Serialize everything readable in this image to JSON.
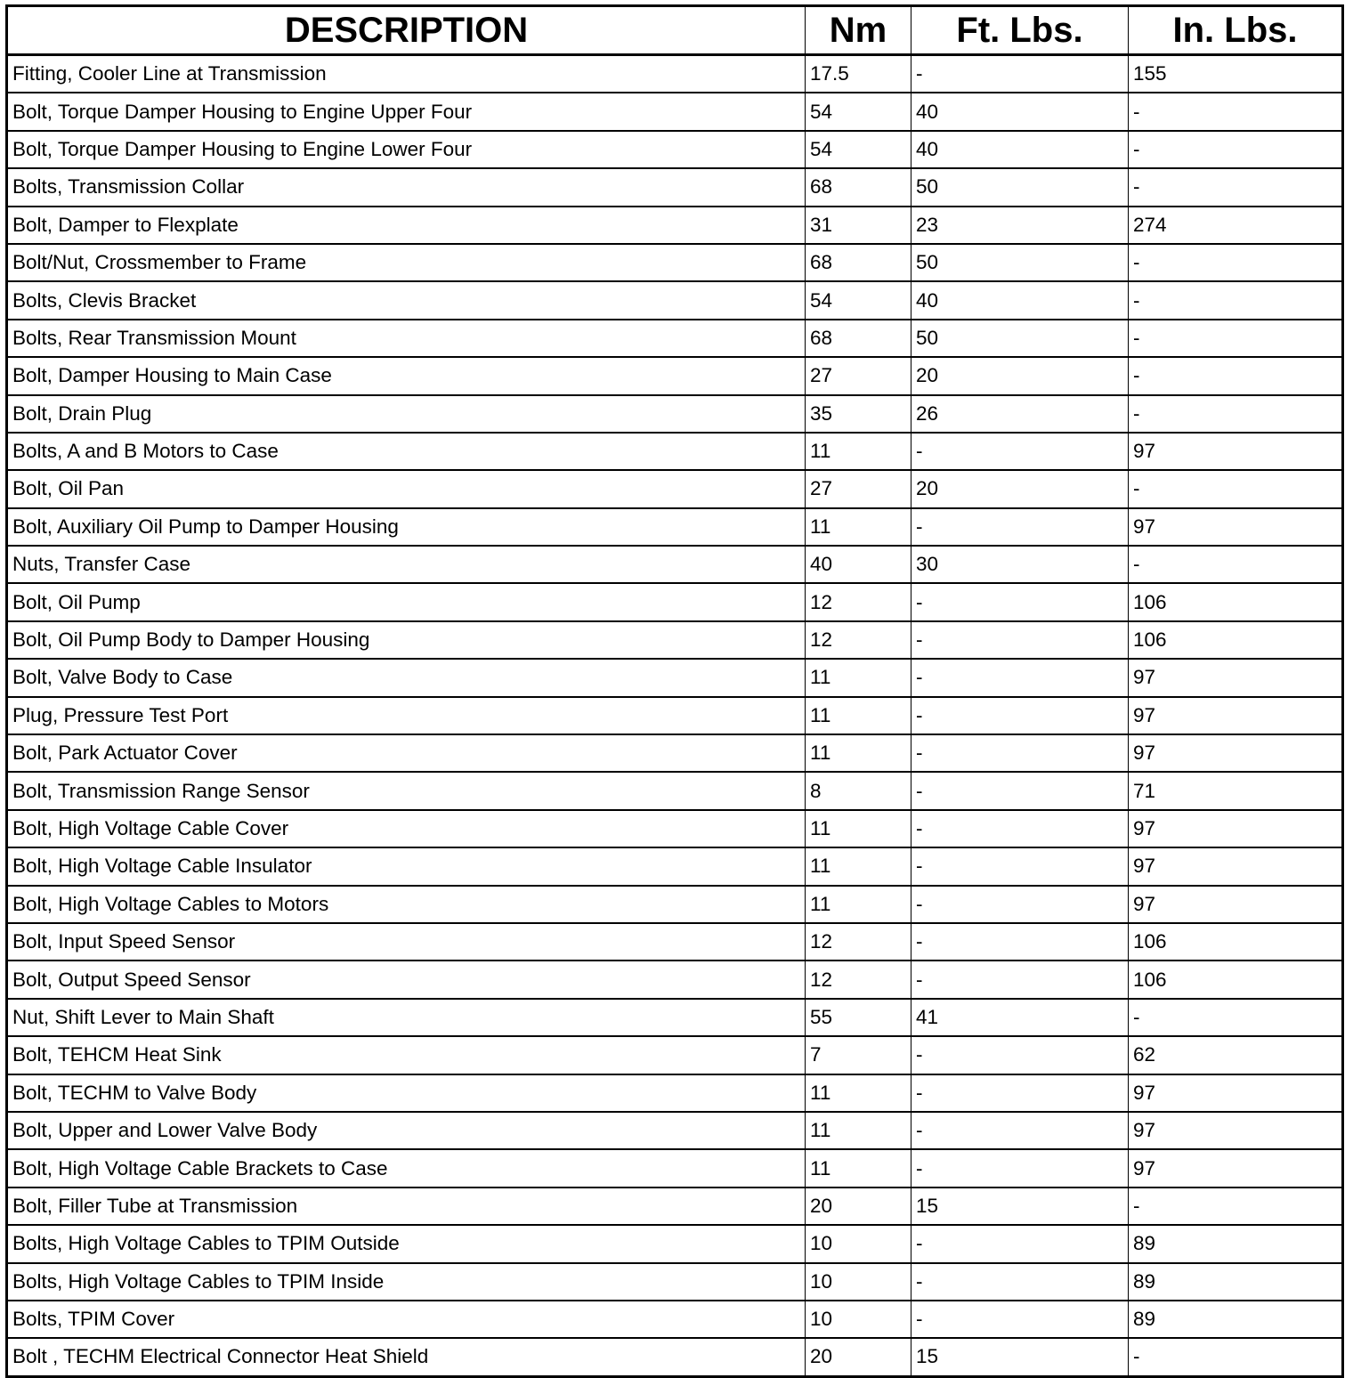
{
  "headers": [
    "DESCRIPTION",
    "Nm",
    "Ft. Lbs.",
    "In. Lbs."
  ],
  "rows": [
    [
      "Fitting, Cooler Line at Transmission",
      "17.5",
      "-",
      "155"
    ],
    [
      "Bolt, Torque Damper Housing to Engine Upper Four",
      "54",
      "40",
      "-"
    ],
    [
      "Bolt, Torque Damper Housing to Engine Lower Four",
      "54",
      "40",
      "-"
    ],
    [
      "Bolts, Transmission Collar",
      "68",
      "50",
      "-"
    ],
    [
      "Bolt, Damper to Flexplate",
      "31",
      "23",
      "274"
    ],
    [
      "Bolt/Nut, Crossmember to Frame",
      "68",
      "50",
      "-"
    ],
    [
      "Bolts, Clevis Bracket",
      "54",
      "40",
      "-"
    ],
    [
      "Bolts, Rear Transmission Mount",
      "68",
      "50",
      "-"
    ],
    [
      "Bolt, Damper Housing to Main Case",
      "27",
      "20",
      "-"
    ],
    [
      "Bolt, Drain Plug",
      "35",
      "26",
      "-"
    ],
    [
      "Bolts, A and B Motors to Case",
      "11",
      "-",
      "97"
    ],
    [
      "Bolt, Oil Pan",
      "27",
      "20",
      "-"
    ],
    [
      "Bolt, Auxiliary Oil Pump to Damper Housing",
      "11",
      "-",
      "97"
    ],
    [
      "Nuts, Transfer Case",
      "40",
      "30",
      "-"
    ],
    [
      "Bolt, Oil Pump",
      "12",
      "-",
      "106"
    ],
    [
      "Bolt, Oil Pump Body to Damper Housing",
      "12",
      "-",
      "106"
    ],
    [
      "Bolt, Valve Body to Case",
      "11",
      "-",
      "97"
    ],
    [
      "Plug, Pressure Test Port",
      "11",
      "-",
      "97"
    ],
    [
      "Bolt, Park Actuator Cover",
      "11",
      "-",
      "97"
    ],
    [
      "Bolt, Transmission Range Sensor",
      "8",
      "-",
      "71"
    ],
    [
      "Bolt, High Voltage Cable Cover",
      "11",
      "-",
      "97"
    ],
    [
      "Bolt, High Voltage Cable Insulator",
      "11",
      "-",
      "97"
    ],
    [
      "Bolt, High Voltage Cables to Motors",
      "11",
      "-",
      "97"
    ],
    [
      "Bolt, Input Speed Sensor",
      "12",
      "-",
      "106"
    ],
    [
      "Bolt, Output Speed Sensor",
      "12",
      "-",
      "106"
    ],
    [
      "Nut, Shift Lever to Main Shaft",
      "55",
      "41",
      "-"
    ],
    [
      "Bolt, TEHCM Heat Sink",
      "7",
      "-",
      "62"
    ],
    [
      "Bolt, TECHM to Valve Body",
      "11",
      "-",
      "97"
    ],
    [
      "Bolt, Upper and Lower Valve Body",
      "11",
      "-",
      "97"
    ],
    [
      "Bolt, High Voltage Cable Brackets to Case",
      "11",
      "-",
      "97"
    ],
    [
      "Bolt, Filler Tube at Transmission",
      "20",
      "15",
      "-"
    ],
    [
      "Bolts, High Voltage Cables to TPIM Outside",
      "10",
      "-",
      "89"
    ],
    [
      "Bolts, High Voltage Cables to TPIM Inside",
      "10",
      "-",
      "89"
    ],
    [
      "Bolts, TPIM Cover",
      "10",
      "-",
      "89"
    ],
    [
      "Bolt , TECHM Electrical Connector Heat Shield",
      "20",
      "15",
      "-"
    ]
  ]
}
